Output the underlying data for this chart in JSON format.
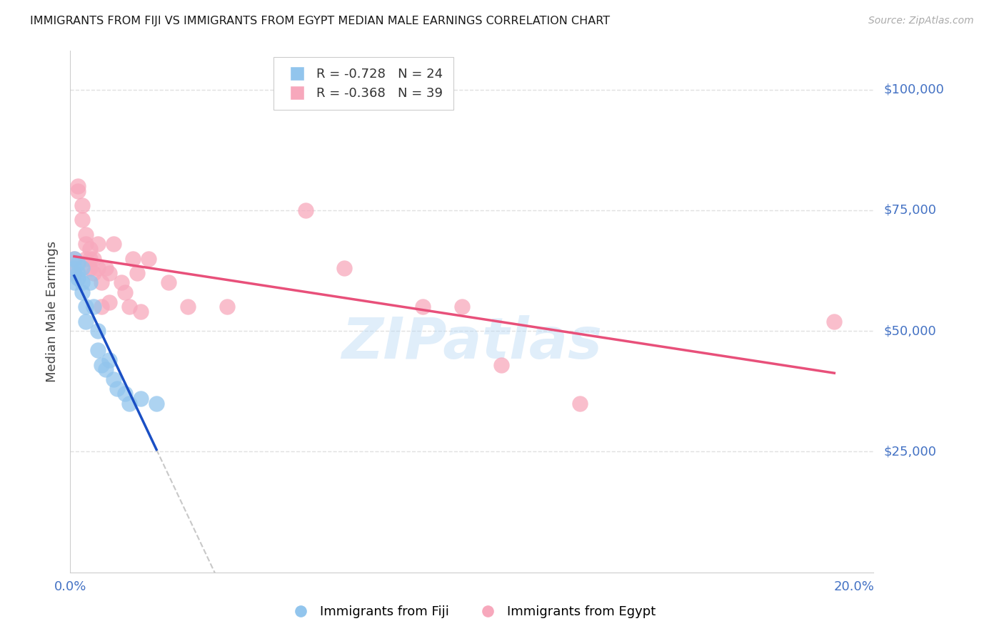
{
  "title": "IMMIGRANTS FROM FIJI VS IMMIGRANTS FROM EGYPT MEDIAN MALE EARNINGS CORRELATION CHART",
  "source": "Source: ZipAtlas.com",
  "ylabel": "Median Male Earnings",
  "x_min": 0.0,
  "x_max": 0.205,
  "y_min": 0,
  "y_max": 108000,
  "ytick_vals": [
    25000,
    50000,
    75000,
    100000
  ],
  "ytick_labels": [
    "$25,000",
    "$50,000",
    "$75,000",
    "$100,000"
  ],
  "xticks": [
    0.0,
    0.04,
    0.08,
    0.12,
    0.16,
    0.2
  ],
  "fiji_color": "#92C5ED",
  "egypt_color": "#F7A8BC",
  "fiji_line_color": "#1A4FC4",
  "egypt_line_color": "#E8507A",
  "dashed_color": "#C8C8C8",
  "fiji_R": -0.728,
  "fiji_N": 24,
  "egypt_R": -0.368,
  "egypt_N": 39,
  "watermark": "ZIPatlas",
  "fiji_scatter_x": [
    0.001,
    0.001,
    0.001,
    0.002,
    0.002,
    0.002,
    0.003,
    0.003,
    0.003,
    0.004,
    0.004,
    0.005,
    0.006,
    0.007,
    0.007,
    0.008,
    0.009,
    0.01,
    0.011,
    0.012,
    0.014,
    0.015,
    0.018,
    0.022
  ],
  "fiji_scatter_y": [
    65000,
    63000,
    60000,
    64000,
    62000,
    61000,
    63000,
    60000,
    58000,
    55000,
    52000,
    60000,
    55000,
    50000,
    46000,
    43000,
    42000,
    44000,
    40000,
    38000,
    37000,
    35000,
    36000,
    35000
  ],
  "egypt_scatter_x": [
    0.001,
    0.001,
    0.002,
    0.002,
    0.003,
    0.003,
    0.004,
    0.004,
    0.004,
    0.005,
    0.005,
    0.005,
    0.006,
    0.006,
    0.007,
    0.007,
    0.008,
    0.008,
    0.009,
    0.01,
    0.01,
    0.011,
    0.013,
    0.014,
    0.015,
    0.016,
    0.017,
    0.018,
    0.02,
    0.025,
    0.03,
    0.04,
    0.06,
    0.07,
    0.09,
    0.1,
    0.11,
    0.13,
    0.195
  ],
  "egypt_scatter_y": [
    65000,
    62000,
    79000,
    80000,
    76000,
    73000,
    70000,
    68000,
    65000,
    67000,
    65000,
    63000,
    65000,
    62000,
    68000,
    63000,
    60000,
    55000,
    63000,
    62000,
    56000,
    68000,
    60000,
    58000,
    55000,
    65000,
    62000,
    54000,
    65000,
    60000,
    55000,
    55000,
    75000,
    63000,
    55000,
    55000,
    43000,
    35000,
    52000
  ],
  "grid_color": "#E0E0E0",
  "tick_color": "#4472C4",
  "axis_color": "#CCCCCC",
  "background_color": "#FFFFFF",
  "legend_fiji_label": "R = -0.728   N = 24",
  "legend_egypt_label": "R = -0.368   N = 39",
  "bottom_fiji_label": "Immigrants from Fiji",
  "bottom_egypt_label": "Immigrants from Egypt"
}
